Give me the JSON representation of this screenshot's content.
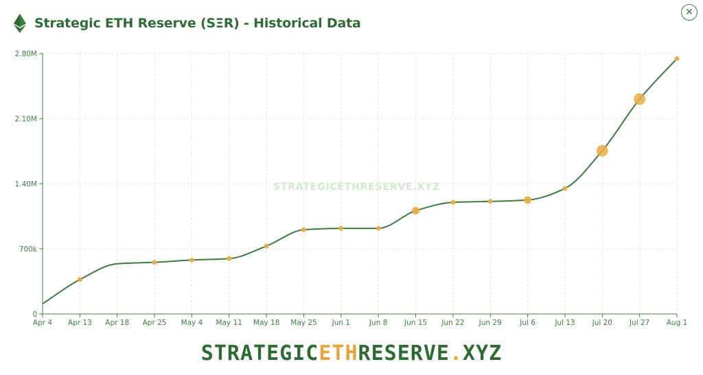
{
  "header": {
    "title": "Strategic ETH Reserve (SΞR) - Historical Data",
    "close_label": "✕"
  },
  "watermark": "STRATEGICETHRESERVE.XYZ",
  "footer": {
    "part1": "STRATEGIC",
    "part2": "ETH",
    "part3": "RESERVE",
    "part4": ".XYZ"
  },
  "colors": {
    "line": "#3d7a40",
    "dot": "#e9ad48",
    "axis": "#3f7d45",
    "grid": "#e3e3e3"
  },
  "chart_data": {
    "type": "line",
    "title": "Strategic ETH Reserve (SΞR) - Historical Data",
    "xlabel": "",
    "ylabel": "",
    "ylim": [
      0,
      2800000
    ],
    "y_ticks": [
      0,
      700000,
      1400000,
      2100000,
      2800000
    ],
    "y_tick_labels": [
      "0",
      "700k",
      "1.40M",
      "2.10M",
      "2.80M"
    ],
    "x_tick_labels": [
      "Apr 4",
      "Apr 13",
      "Apr 18",
      "Apr 25",
      "May 4",
      "May 11",
      "May 18",
      "May 25",
      "Jun 1",
      "Jun 8",
      "Jun 15",
      "Jun 22",
      "Jun 29",
      "Jul 6",
      "Jul 13",
      "Jul 20",
      "Jul 27",
      "Aug 1"
    ],
    "grid": true,
    "series": [
      {
        "points": [
          {
            "x": "Apr 4",
            "y": 110000,
            "marker": 0
          },
          {
            "x": "Apr 13",
            "y": 370000,
            "marker": 1
          },
          {
            "x": "Apr 18",
            "y": 540000,
            "marker": 0
          },
          {
            "x": "Apr 25",
            "y": 555000,
            "marker": 1
          },
          {
            "x": "May 4",
            "y": 580000,
            "marker": 1
          },
          {
            "x": "May 11",
            "y": 595000,
            "marker": 1
          },
          {
            "x": "May 18",
            "y": 730000,
            "marker": 1
          },
          {
            "x": "May 25",
            "y": 905000,
            "marker": 1
          },
          {
            "x": "Jun 1",
            "y": 920000,
            "marker": 1
          },
          {
            "x": "Jun 8",
            "y": 920000,
            "marker": 1
          },
          {
            "x": "Jun 15",
            "y": 1110000,
            "marker": 2
          },
          {
            "x": "Jun 22",
            "y": 1200000,
            "marker": 1
          },
          {
            "x": "Jun 29",
            "y": 1210000,
            "marker": 1
          },
          {
            "x": "Jul 6",
            "y": 1225000,
            "marker": 2
          },
          {
            "x": "Jul 13",
            "y": 1350000,
            "marker": 1
          },
          {
            "x": "Jul 20",
            "y": 1755000,
            "marker": 3
          },
          {
            "x": "Jul 27",
            "y": 2310000,
            "marker": 3
          },
          {
            "x": "Aug 1",
            "y": 2745000,
            "marker": 1
          }
        ]
      }
    ]
  }
}
